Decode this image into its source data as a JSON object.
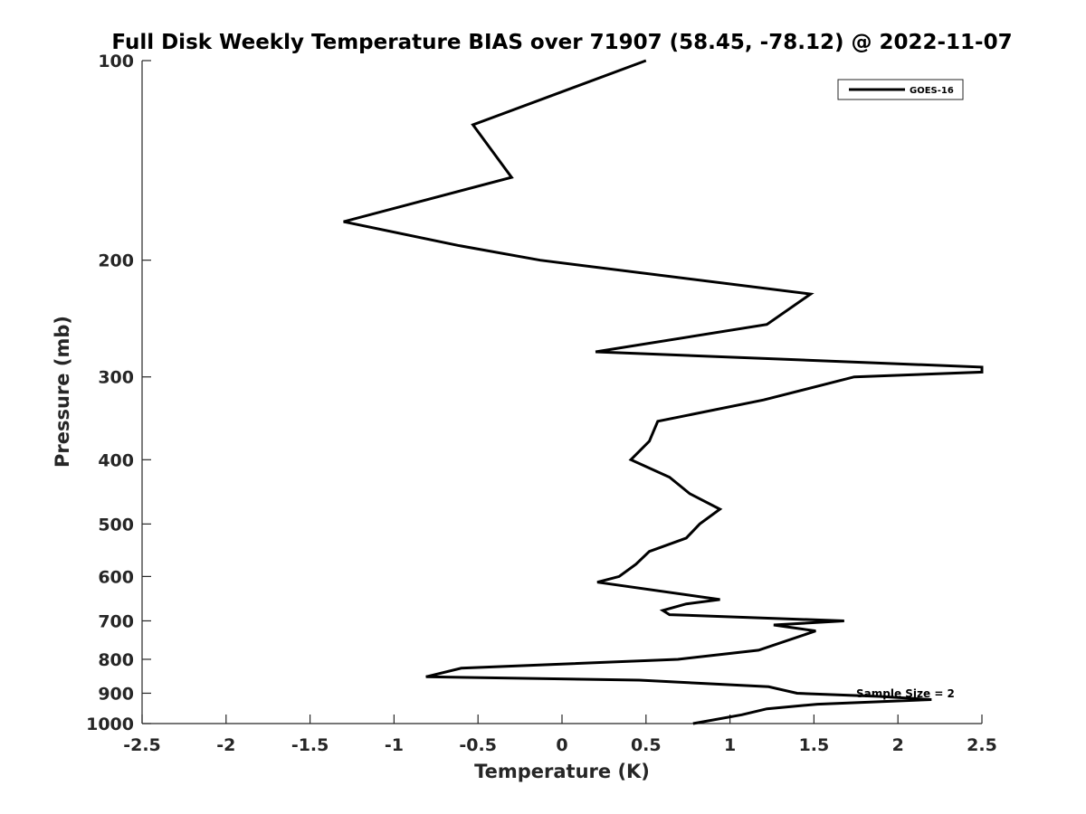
{
  "chart_data": {
    "type": "line",
    "title": "Full Disk Weekly Temperature BIAS over 71907 (58.45, -78.12) @ 2022-11-07",
    "xlabel": "Temperature (K)",
    "ylabel": "Pressure (mb)",
    "xlim": [
      -2.5,
      2.5
    ],
    "ylim": [
      100,
      1000
    ],
    "y_scale": "log",
    "y_reversed": true,
    "grid": false,
    "legend_position": "top-right",
    "x_ticks": [
      "-2.5",
      "-2",
      "-1.5",
      "-1",
      "-0.5",
      "0",
      "0.5",
      "1",
      "1.5",
      "2",
      "2.5"
    ],
    "x_tick_values": [
      -2.5,
      -2,
      -1.5,
      -1,
      -0.5,
      0,
      0.5,
      1,
      1.5,
      2,
      2.5
    ],
    "y_ticks": [
      "100",
      "200",
      "300",
      "400",
      "500",
      "600",
      "700",
      "800",
      "900",
      "1000"
    ],
    "y_tick_values": [
      100,
      200,
      300,
      400,
      500,
      600,
      700,
      800,
      900,
      1000
    ],
    "series": [
      {
        "name": "GOES-16",
        "color": "#000000",
        "points": [
          [
            0.5,
            100
          ],
          [
            -0.53,
            125
          ],
          [
            -0.3,
            150
          ],
          [
            -1.3,
            175
          ],
          [
            -0.62,
            190
          ],
          [
            -0.13,
            200
          ],
          [
            1.48,
            225
          ],
          [
            1.22,
            250
          ],
          [
            0.2,
            275
          ],
          [
            2.5,
            290
          ],
          [
            2.5,
            295
          ],
          [
            1.74,
            300
          ],
          [
            1.2,
            325
          ],
          [
            0.57,
            350
          ],
          [
            0.52,
            375
          ],
          [
            0.41,
            400
          ],
          [
            0.64,
            425
          ],
          [
            0.76,
            450
          ],
          [
            0.94,
            475
          ],
          [
            0.82,
            500
          ],
          [
            0.74,
            525
          ],
          [
            0.52,
            550
          ],
          [
            0.44,
            575
          ],
          [
            0.34,
            600
          ],
          [
            0.21,
            612
          ],
          [
            0.94,
            650
          ],
          [
            0.74,
            660
          ],
          [
            0.6,
            675
          ],
          [
            0.64,
            685
          ],
          [
            1.68,
            700
          ],
          [
            1.26,
            710
          ],
          [
            1.51,
            725
          ],
          [
            1.17,
            775
          ],
          [
            0.69,
            800
          ],
          [
            -0.6,
            825
          ],
          [
            -0.81,
            850
          ],
          [
            0.46,
            860
          ],
          [
            1.23,
            880
          ],
          [
            1.4,
            900
          ],
          [
            1.89,
            910
          ],
          [
            2.2,
            920
          ],
          [
            1.52,
            935
          ],
          [
            1.22,
            950
          ],
          [
            1.07,
            970
          ],
          [
            0.78,
            1000
          ]
        ]
      }
    ],
    "annotations": [
      "Sample Size = 2"
    ]
  }
}
